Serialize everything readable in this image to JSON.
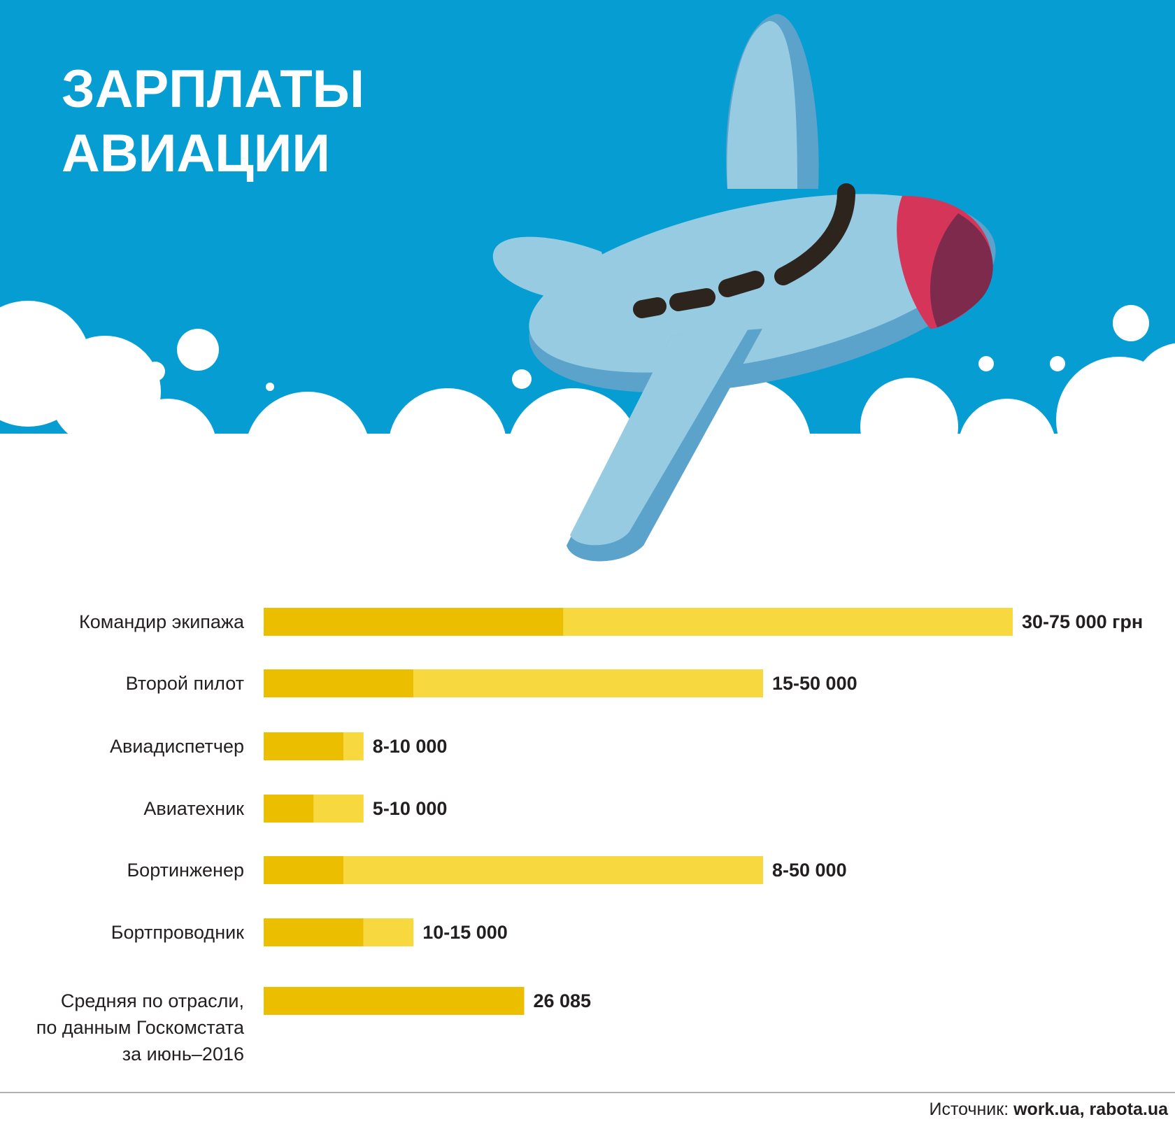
{
  "chart_data": {
    "type": "range-bar",
    "title": "ЗАРПЛАТЫ\nАВИАЦИИ",
    "categories": [
      "Командир экипажа",
      "Второй пилот",
      "Авиадиспетчер",
      "Авиатехник",
      "Бортинженер",
      "Бортпроводник",
      "Средняя по отрасли,\nпо данным Госкомстата\nза июнь–2016"
    ],
    "low": [
      30000,
      15000,
      8000,
      5000,
      8000,
      10000,
      26085
    ],
    "high": [
      75000,
      50000,
      10000,
      10000,
      50000,
      15000,
      null
    ],
    "value_labels": [
      "30-75 000 грн",
      "15-50 000",
      "8-10 000",
      "5-10 000",
      "8-50 000",
      "10-15 000",
      "26 085"
    ],
    "low_color": "#ecbe00",
    "high_color": "#f7d93f",
    "xlim": [
      0,
      75000
    ],
    "source_label": "Источник:",
    "source": "work.ua, rabota.ua"
  }
}
